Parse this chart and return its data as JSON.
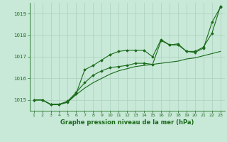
{
  "x": [
    1,
    2,
    3,
    4,
    5,
    6,
    7,
    8,
    9,
    10,
    11,
    12,
    13,
    14,
    15,
    16,
    17,
    18,
    19,
    20,
    21,
    22,
    23
  ],
  "line1": [
    1015.0,
    1015.0,
    1014.8,
    1014.8,
    1014.9,
    1015.3,
    1016.4,
    1016.6,
    1016.85,
    1017.1,
    1017.25,
    1017.3,
    1017.3,
    1017.3,
    1017.0,
    1017.8,
    1017.55,
    1017.55,
    1017.25,
    1017.2,
    1017.4,
    1018.6,
    1019.3
  ],
  "line2": [
    1015.0,
    1015.0,
    1014.8,
    1014.8,
    1014.95,
    1015.35,
    1015.8,
    1016.15,
    1016.35,
    1016.5,
    1016.55,
    1016.6,
    1016.7,
    1016.7,
    1016.65,
    1017.75,
    1017.55,
    1017.6,
    1017.25,
    1017.25,
    1017.45,
    1018.1,
    1019.35
  ],
  "line3": [
    1015.0,
    1015.0,
    1014.78,
    1014.78,
    1014.9,
    1015.25,
    1015.55,
    1015.8,
    1016.0,
    1016.2,
    1016.35,
    1016.45,
    1016.55,
    1016.6,
    1016.65,
    1016.7,
    1016.75,
    1016.8,
    1016.9,
    1016.95,
    1017.05,
    1017.15,
    1017.25
  ],
  "line_color": "#1a6b1a",
  "bg_color": "#c8e8d8",
  "grid_color": "#aad0be",
  "xlabel": "Graphe pression niveau de la mer (hPa)",
  "ylim": [
    1014.5,
    1019.5
  ],
  "xlim": [
    0.5,
    23.5
  ],
  "yticks": [
    1015,
    1016,
    1017,
    1018,
    1019
  ],
  "xticks": [
    1,
    2,
    3,
    4,
    5,
    6,
    7,
    8,
    9,
    10,
    11,
    12,
    13,
    14,
    15,
    16,
    17,
    18,
    19,
    20,
    21,
    22,
    23
  ]
}
